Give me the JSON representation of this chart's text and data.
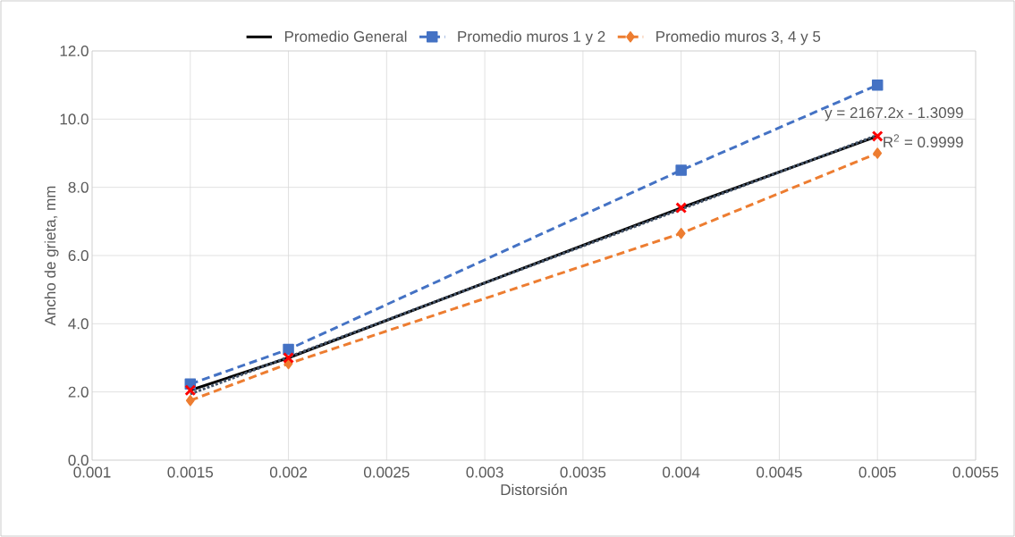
{
  "chart_data": {
    "type": "line",
    "xlabel": "Distorsión",
    "ylabel": "Ancho de grieta, mm",
    "x": [
      0.0015,
      0.002,
      0.004,
      0.005
    ],
    "series": [
      {
        "name": "Promedio General",
        "color": "#000000",
        "colors": [
          "#ff0000",
          "#ff0000",
          "#ff0000",
          "#ff0000"
        ],
        "values": [
          2.05,
          3.0,
          7.4,
          9.5
        ],
        "marker": "cross",
        "line_style": "solid"
      },
      {
        "name": "Promedio muros 1 y 2",
        "color": "#4472c4",
        "values": [
          2.23,
          3.25,
          8.5,
          11.0
        ],
        "marker": "square",
        "line_style": "dashed"
      },
      {
        "name": "Promedio muros 3, 4 y 5",
        "color": "#ed7d31",
        "values": [
          1.75,
          2.83,
          6.65,
          9.0
        ],
        "marker": "diamond",
        "line_style": "dashed"
      },
      {
        "type": "line",
        "color": "#44546a",
        "x": [
          0.0015,
          0.005
        ],
        "values": [
          1.94,
          9.53
        ],
        "marker": "none",
        "line_style": "dotted"
      }
    ],
    "xlim": [
      0.001,
      0.0055
    ],
    "xticks": [
      0.001,
      0.0015,
      0.002,
      0.0025,
      0.003,
      0.0035,
      0.004,
      0.0045,
      0.005,
      0.0055
    ],
    "ylim": [
      0,
      12
    ],
    "yticks": [
      {
        "value": 0,
        "label": "0.0"
      },
      {
        "value": 2,
        "label": "2.0"
      },
      {
        "value": 4,
        "label": "4.0"
      },
      {
        "value": 6,
        "label": "6.0"
      },
      {
        "value": 8,
        "label": "8.0"
      },
      {
        "value": 10,
        "label": "10.0"
      },
      {
        "value": 12,
        "label": "12.0"
      }
    ],
    "grid": true,
    "legend": "top",
    "annotations": [
      "y = 2167.2x - 1.3099",
      "R$^{2}$ = 0.9999"
    ]
  }
}
